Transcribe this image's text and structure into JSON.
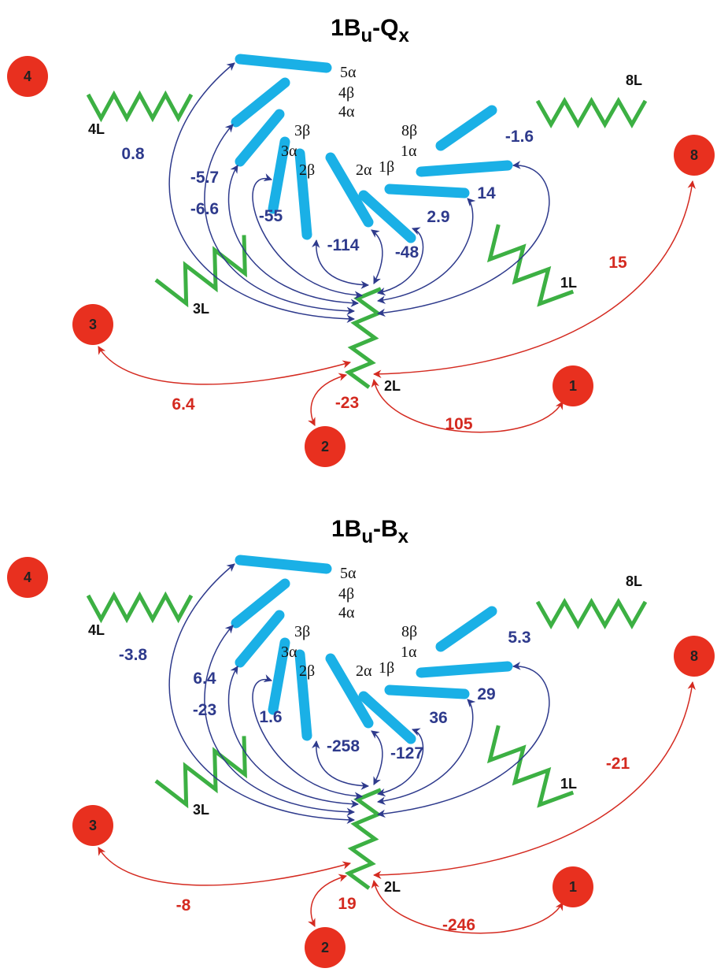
{
  "panels": [
    {
      "title": {
        "base": "1B",
        "sub1": "u",
        "dash": "-Q",
        "sub2": "x"
      },
      "sites": [
        "4",
        "8",
        "3",
        "2",
        "1"
      ],
      "chains": [
        "4L",
        "8L",
        "3L",
        "1L",
        "2L"
      ],
      "orbitals": [
        "5α",
        "4β",
        "4α",
        "3β",
        "3α",
        "2β",
        "2α",
        "1β",
        "1α",
        "8β"
      ],
      "couplings": [
        0.8,
        -5.7,
        -6.6,
        -55,
        -114,
        -48,
        2.9,
        14,
        -1.6
      ],
      "site_couplings": [
        15,
        6.4,
        -23,
        105
      ]
    },
    {
      "title": {
        "base": "1B",
        "sub1": "u",
        "dash": "-B",
        "sub2": "x"
      },
      "sites": [
        "4",
        "8",
        "3",
        "2",
        "1"
      ],
      "chains": [
        "4L",
        "8L",
        "3L",
        "1L",
        "2L"
      ],
      "orbitals": [
        "5α",
        "4β",
        "4α",
        "3β",
        "3α",
        "2β",
        "2α",
        "1β",
        "1α",
        "8β"
      ],
      "couplings": [
        -3.8,
        6.4,
        -23,
        1.6,
        -258,
        -127,
        36,
        29,
        5.3
      ],
      "site_couplings": [
        -21,
        -8,
        19,
        -246
      ]
    }
  ]
}
